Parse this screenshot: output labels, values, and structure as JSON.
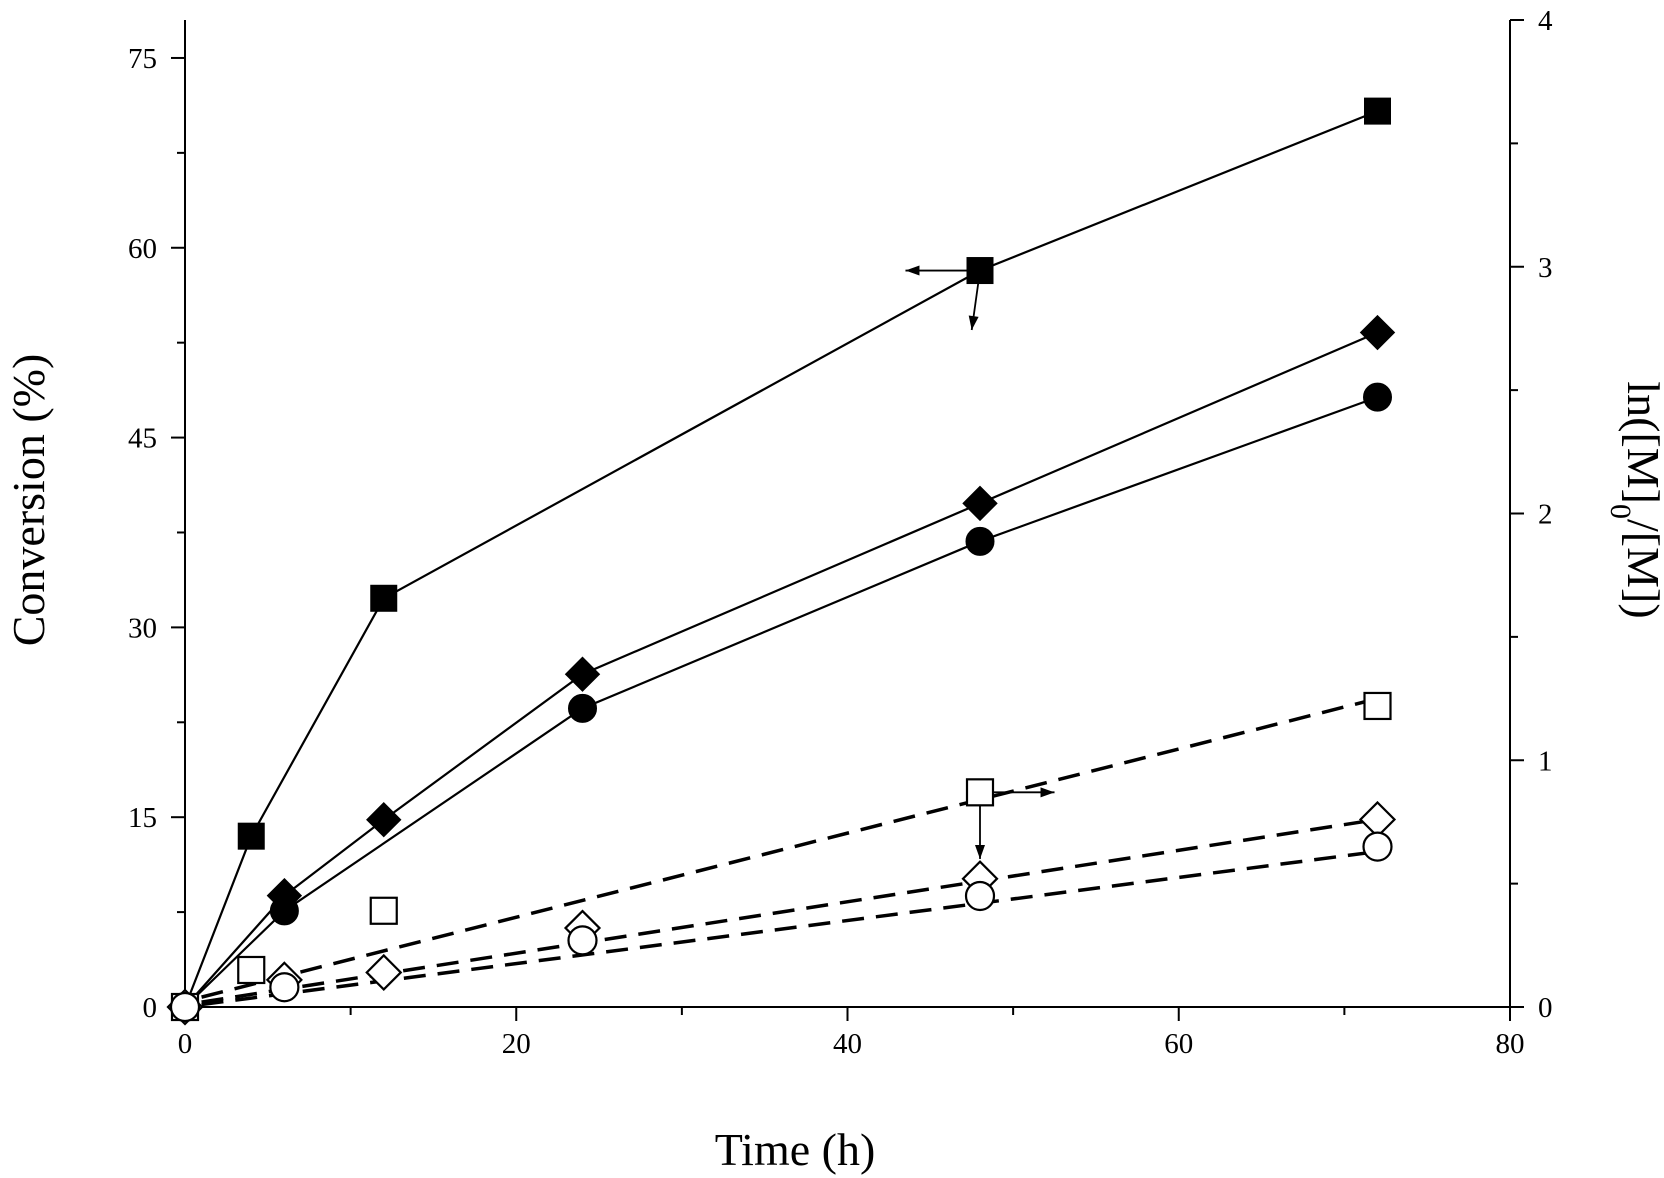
{
  "chart_data": {
    "type": "line",
    "xlabel": "Time (h)",
    "ylabel_left": "Conversion (%)",
    "ylabel_right_parts": {
      "base": "ln([M]",
      "sub": "0",
      "tail": "/[M])"
    },
    "xlim": [
      0,
      80
    ],
    "ylim_left": [
      0,
      78
    ],
    "ylim_right": [
      0,
      4
    ],
    "x_ticks": [
      0,
      20,
      40,
      60,
      80
    ],
    "y_left_ticks": [
      0,
      15,
      30,
      45,
      60,
      75
    ],
    "y_right_ticks": [
      0,
      1,
      2,
      3,
      4
    ],
    "series": [
      {
        "axis": "left",
        "marker": "square",
        "filled": true,
        "line": "solid",
        "points": [
          [
            0,
            0
          ],
          [
            4,
            13.5
          ],
          [
            12,
            32.3
          ],
          [
            48,
            58.2
          ],
          [
            72,
            70.8
          ]
        ]
      },
      {
        "axis": "left",
        "marker": "diamond",
        "filled": true,
        "line": "solid",
        "points": [
          [
            0,
            0
          ],
          [
            6,
            8.8
          ],
          [
            12,
            14.8
          ],
          [
            24,
            26.3
          ],
          [
            48,
            39.8
          ],
          [
            72,
            53.3
          ]
        ]
      },
      {
        "axis": "left",
        "marker": "circle",
        "filled": true,
        "line": "solid",
        "points": [
          [
            0,
            0
          ],
          [
            6,
            7.6
          ],
          [
            24,
            23.6
          ],
          [
            48,
            36.8
          ],
          [
            72,
            48.2
          ]
        ]
      },
      {
        "axis": "right",
        "marker": "square",
        "filled": false,
        "line": "dashed",
        "points": [
          [
            0,
            0
          ],
          [
            4,
            0.15
          ],
          [
            12,
            0.39
          ],
          [
            48,
            0.87
          ],
          [
            72,
            1.22
          ]
        ],
        "fit": [
          [
            1,
            0.04
          ],
          [
            72,
            1.25
          ]
        ]
      },
      {
        "axis": "right",
        "marker": "diamond",
        "filled": false,
        "line": "dashed",
        "points": [
          [
            0,
            0
          ],
          [
            6,
            0.11
          ],
          [
            12,
            0.14
          ],
          [
            24,
            0.32
          ],
          [
            48,
            0.52
          ],
          [
            72,
            0.76
          ]
        ],
        "fit": [
          [
            1,
            0.02
          ],
          [
            72,
            0.76
          ]
        ]
      },
      {
        "axis": "right",
        "marker": "circle",
        "filled": false,
        "line": "dashed",
        "points": [
          [
            0,
            0
          ],
          [
            6,
            0.08
          ],
          [
            24,
            0.27
          ],
          [
            48,
            0.45
          ],
          [
            72,
            0.65
          ]
        ],
        "fit": [
          [
            1,
            0.01
          ],
          [
            72,
            0.63
          ]
        ]
      }
    ],
    "annotations": [
      {
        "type": "arrow",
        "from": [
          48,
          58.2
        ],
        "to": [
          43.5,
          58.2
        ],
        "axis": "left",
        "meaning": "left axis"
      },
      {
        "type": "arrow",
        "from": [
          48,
          58.2
        ],
        "to": [
          47.5,
          53.5
        ],
        "axis": "left",
        "meaning": "down"
      },
      {
        "type": "arrow",
        "from": [
          48,
          0.87
        ],
        "to": [
          52.5,
          0.87
        ],
        "axis": "right",
        "meaning": "right axis"
      },
      {
        "type": "arrow",
        "from": [
          48,
          0.87
        ],
        "to": [
          48,
          0.6
        ],
        "axis": "right",
        "meaning": "down"
      }
    ]
  }
}
